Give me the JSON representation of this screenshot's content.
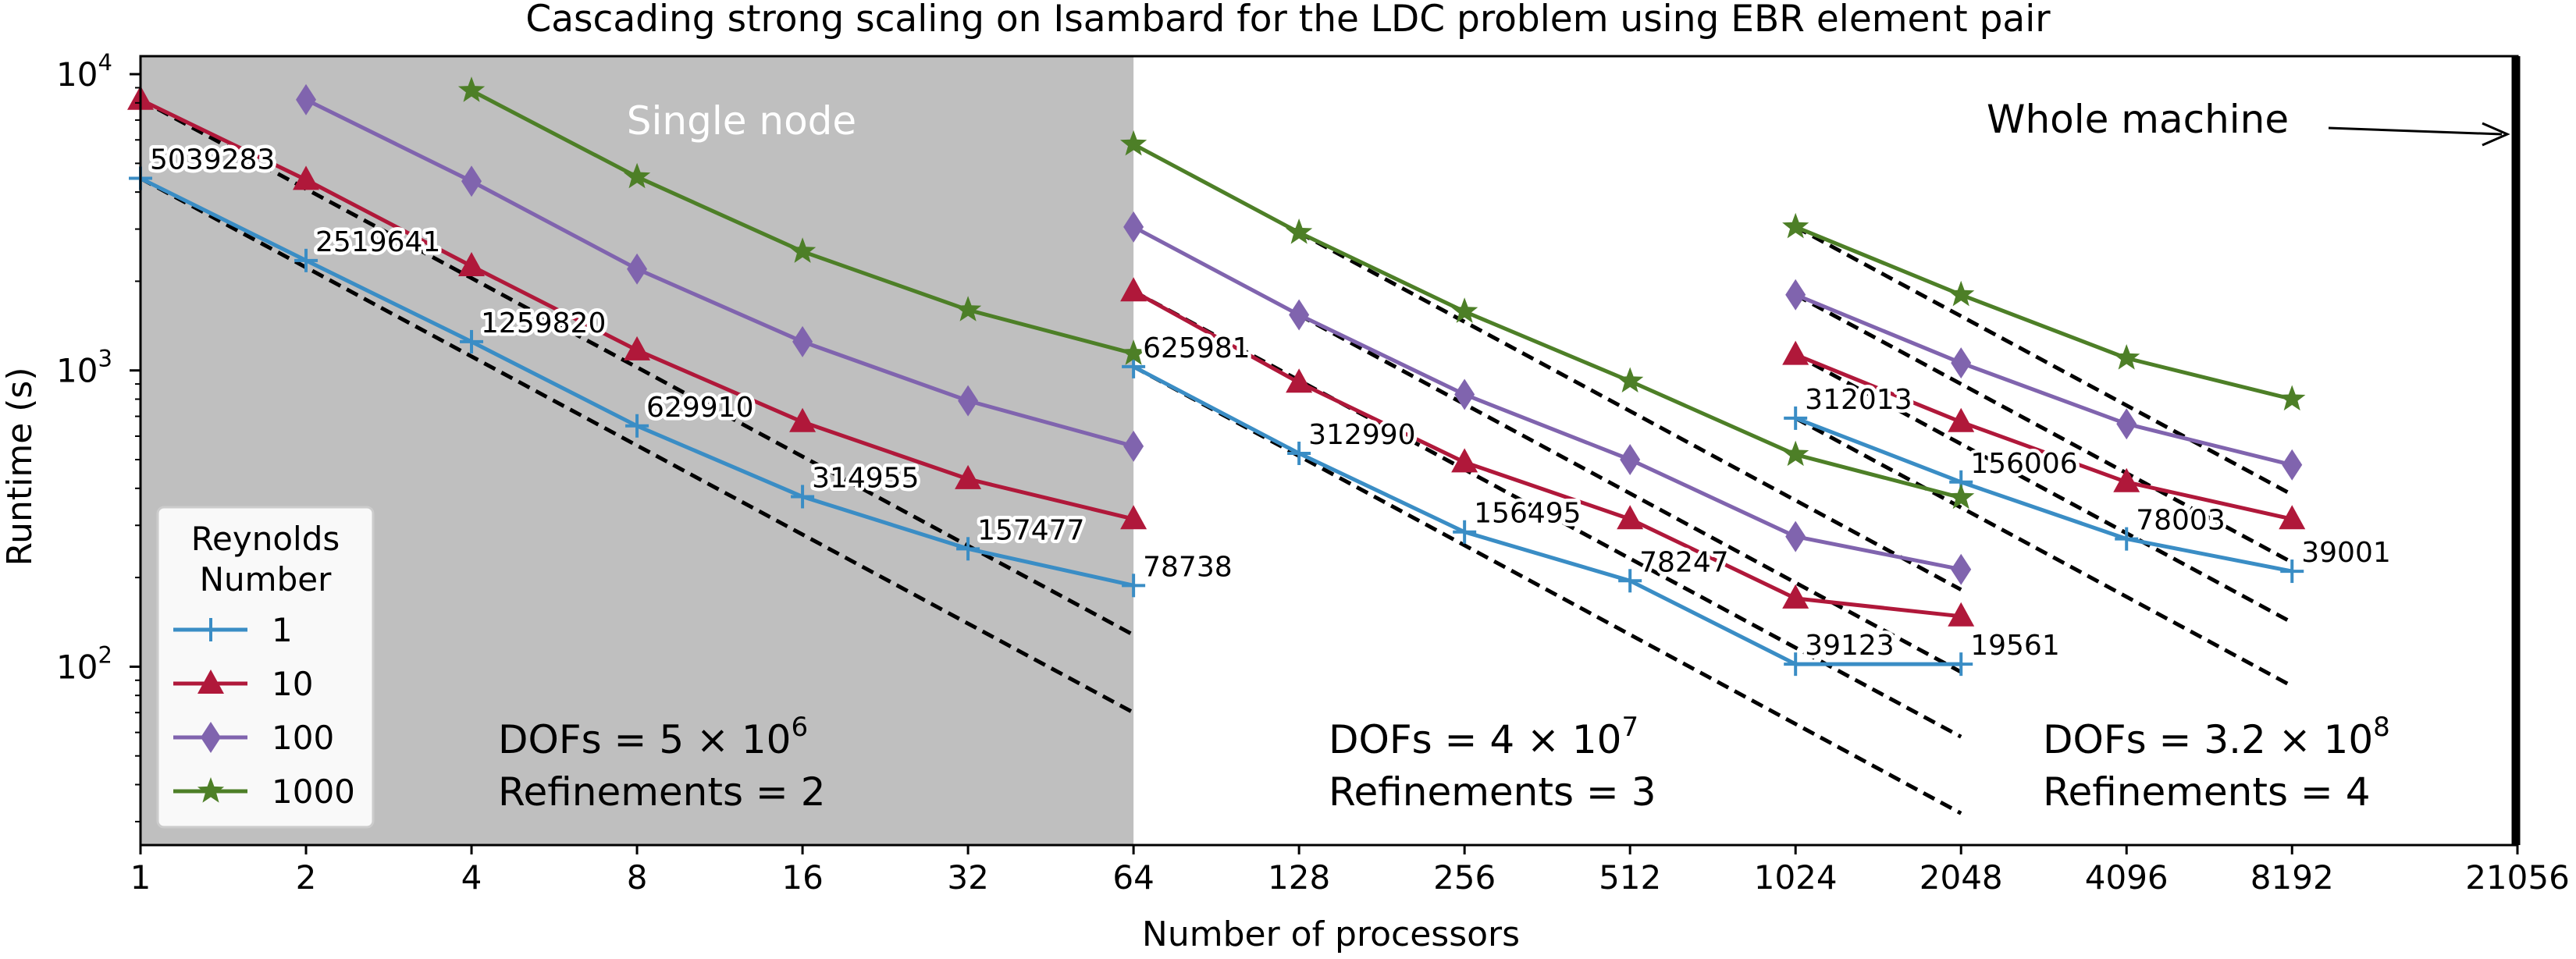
{
  "chart_data": {
    "type": "line",
    "title": "Cascading strong scaling on Isambard for the LDC problem using EBR element pair",
    "xlabel": "Number of processors",
    "ylabel": "Runtime (s)",
    "x_scale": "log2",
    "y_scale": "log10",
    "xlim": [
      1,
      21056
    ],
    "ylim": [
      25,
      11500
    ],
    "x_ticks": [
      1,
      2,
      4,
      8,
      16,
      32,
      64,
      128,
      256,
      512,
      1024,
      2048,
      4096,
      8192,
      21056
    ],
    "x_tick_labels": [
      "1",
      "2",
      "4",
      "8",
      "16",
      "32",
      "64",
      "128",
      "256",
      "512",
      "1024",
      "2048",
      "4096",
      "8192",
      "21056"
    ],
    "y_ticks": [
      {
        "value": 100,
        "base": "10",
        "exp": "2"
      },
      {
        "value": 1000,
        "base": "10",
        "exp": "3"
      },
      {
        "value": 10000,
        "base": "10",
        "exp": "4"
      }
    ],
    "grid": false,
    "legend": {
      "title_line1": "Reynolds",
      "title_line2": "Number",
      "placement": "bottom-left"
    },
    "shaded_region": {
      "x": [
        1,
        64
      ],
      "color": "#bfbfbf",
      "label": "Single node"
    },
    "machine_line": {
      "x": 21056,
      "label": "Whole machine"
    },
    "series": [
      {
        "name": "1",
        "color": "#3a8dc5",
        "marker": "plus",
        "segments": [
          [
            [
              1,
              4450
            ],
            [
              2,
              2350
            ],
            [
              4,
              1250
            ],
            [
              8,
              650
            ],
            [
              16,
              375
            ],
            [
              32,
              250
            ],
            [
              64,
              188
            ]
          ],
          [
            [
              64,
              1030
            ],
            [
              128,
              525
            ],
            [
              256,
              285
            ],
            [
              512,
              195
            ],
            [
              1024,
              102
            ],
            [
              2048,
              102
            ]
          ],
          [
            [
              1024,
              690
            ],
            [
              2048,
              420
            ],
            [
              4096,
              270
            ],
            [
              8192,
              210
            ]
          ]
        ]
      },
      {
        "name": "10",
        "color": "#b0183a",
        "marker": "triangle",
        "segments": [
          [
            [
              1,
              8200
            ],
            [
              2,
              4400
            ],
            [
              4,
              2250
            ],
            [
              8,
              1170
            ],
            [
              16,
              670
            ],
            [
              32,
              430
            ],
            [
              64,
              315
            ]
          ],
          [
            [
              64,
              1850
            ],
            [
              128,
              910
            ],
            [
              256,
              490
            ],
            [
              512,
              315
            ],
            [
              1024,
              170
            ],
            [
              2048,
              148
            ]
          ],
          [
            [
              1024,
              1130
            ],
            [
              2048,
              670
            ],
            [
              4096,
              420
            ],
            [
              8192,
              315
            ]
          ]
        ]
      },
      {
        "name": "100",
        "color": "#8064ae",
        "marker": "diamond",
        "segments": [
          [
            [
              2,
              8200
            ],
            [
              4,
              4350
            ],
            [
              8,
              2200
            ],
            [
              16,
              1250
            ],
            [
              32,
              790
            ],
            [
              64,
              555
            ]
          ],
          [
            [
              64,
              3050
            ],
            [
              128,
              1540
            ],
            [
              256,
              830
            ],
            [
              512,
              500
            ],
            [
              1024,
              275
            ],
            [
              2048,
              213
            ]
          ],
          [
            [
              1024,
              1800
            ],
            [
              2048,
              1060
            ],
            [
              4096,
              660
            ],
            [
              8192,
              480
            ]
          ]
        ]
      },
      {
        "name": "1000",
        "color": "#4d7f27",
        "marker": "star",
        "segments": [
          [
            [
              4,
              8800
            ],
            [
              8,
              4500
            ],
            [
              16,
              2520
            ],
            [
              32,
              1600
            ],
            [
              64,
              1140
            ]
          ],
          [
            [
              64,
              5800
            ],
            [
              128,
              2920
            ],
            [
              256,
              1580
            ],
            [
              512,
              920
            ],
            [
              1024,
              520
            ],
            [
              2048,
              372
            ]
          ],
          [
            [
              1024,
              3050
            ],
            [
              2048,
              1800
            ],
            [
              4096,
              1100
            ],
            [
              8192,
              800
            ]
          ]
        ]
      }
    ],
    "ideal_lines": [
      [
        [
          1,
          4450
        ],
        [
          64,
          70
        ]
      ],
      [
        [
          1,
          8200
        ],
        [
          64,
          128
        ]
      ],
      [
        [
          64,
          1030
        ],
        [
          2048,
          32
        ]
      ],
      [
        [
          64,
          1850
        ],
        [
          2048,
          58
        ]
      ],
      [
        [
          128,
          1540
        ],
        [
          2048,
          96
        ]
      ],
      [
        [
          128,
          2920
        ],
        [
          2048,
          182
        ]
      ],
      [
        [
          1024,
          690
        ],
        [
          8192,
          86
        ]
      ],
      [
        [
          1024,
          1130
        ],
        [
          8192,
          141
        ]
      ],
      [
        [
          1024,
          1800
        ],
        [
          8192,
          225
        ]
      ],
      [
        [
          1024,
          3050
        ],
        [
          8192,
          381
        ]
      ]
    ],
    "point_annotations": [
      {
        "text": "5039283",
        "x": 1,
        "y": 4450
      },
      {
        "text": "2519641",
        "x": 2,
        "y": 2350
      },
      {
        "text": "1259820",
        "x": 4,
        "y": 1250
      },
      {
        "text": "629910",
        "x": 8,
        "y": 650
      },
      {
        "text": "314955",
        "x": 16,
        "y": 375
      },
      {
        "text": "157477",
        "x": 32,
        "y": 250
      },
      {
        "text": "78738",
        "x": 64,
        "y": 188
      },
      {
        "text": "625981",
        "x": 64,
        "y": 1030
      },
      {
        "text": "312990",
        "x": 128,
        "y": 525
      },
      {
        "text": "156495",
        "x": 256,
        "y": 285
      },
      {
        "text": "78247",
        "x": 512,
        "y": 195
      },
      {
        "text": "39123",
        "x": 1024,
        "y": 102
      },
      {
        "text": "19561",
        "x": 2048,
        "y": 102
      },
      {
        "text": "312013",
        "x": 1024,
        "y": 690
      },
      {
        "text": "156006",
        "x": 2048,
        "y": 420
      },
      {
        "text": "78003",
        "x": 4096,
        "y": 270
      },
      {
        "text": "39001",
        "x": 8192,
        "y": 210
      }
    ],
    "region_annotations": [
      {
        "dofs_prefix": "DOFs = ",
        "dofs_mantissa": "5 × 10",
        "dofs_exp": "6",
        "refinements": "Refinements = 2"
      },
      {
        "dofs_prefix": "DOFs = ",
        "dofs_mantissa": "4 × 10",
        "dofs_exp": "7",
        "refinements": "Refinements = 3"
      },
      {
        "dofs_prefix": "DOFs = ",
        "dofs_mantissa": "3.2 × 10",
        "dofs_exp": "8",
        "refinements": "Refinements = 4"
      }
    ]
  }
}
